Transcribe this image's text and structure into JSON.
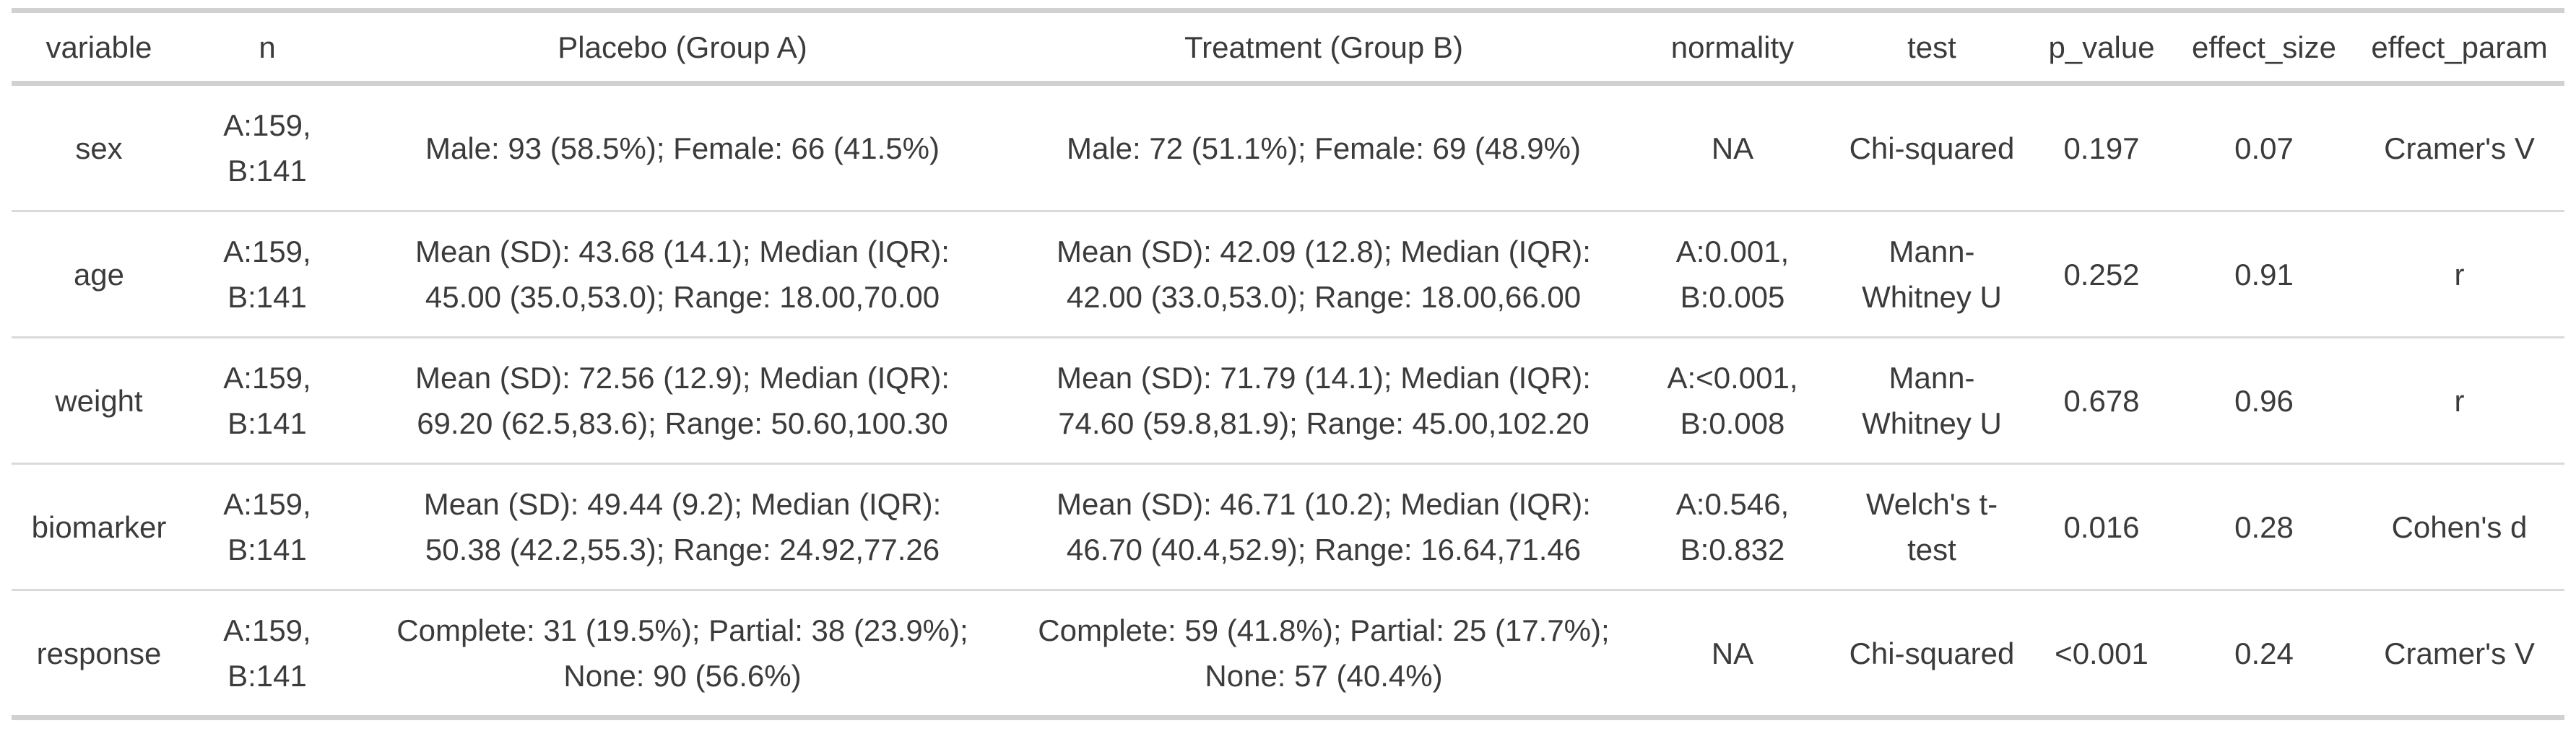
{
  "colors": {
    "text": "#3b3b3b",
    "rule_thick": "#d1d1d1",
    "rule_thin": "#dadada",
    "background": "#ffffff"
  },
  "chart_data": {
    "type": "table",
    "title": "",
    "columns": [
      "variable",
      "n",
      "Placebo (Group A)",
      "Treatment (Group B)",
      "normality",
      "test",
      "p_value",
      "effect_size",
      "effect_param"
    ],
    "rows": [
      [
        "sex",
        "A:159,\nB:141",
        "Male: 93 (58.5%); Female: 66 (41.5%)",
        "Male: 72 (51.1%); Female: 69 (48.9%)",
        "NA",
        "Chi-squared",
        "0.197",
        "0.07",
        "Cramer's V"
      ],
      [
        "age",
        "A:159,\nB:141",
        "Mean (SD): 43.68 (14.1); Median (IQR):\n45.00 (35.0,53.0); Range: 18.00,70.00",
        "Mean (SD): 42.09 (12.8); Median (IQR):\n42.00 (33.0,53.0); Range: 18.00,66.00",
        "A:0.001,\nB:0.005",
        "Mann-\nWhitney U",
        "0.252",
        "0.91",
        "r"
      ],
      [
        "weight",
        "A:159,\nB:141",
        "Mean (SD): 72.56 (12.9); Median (IQR):\n69.20 (62.5,83.6); Range: 50.60,100.30",
        "Mean (SD): 71.79 (14.1); Median (IQR):\n74.60 (59.8,81.9); Range: 45.00,102.20",
        "A:<0.001,\nB:0.008",
        "Mann-\nWhitney U",
        "0.678",
        "0.96",
        "r"
      ],
      [
        "biomarker",
        "A:159,\nB:141",
        "Mean (SD): 49.44 (9.2); Median (IQR):\n50.38 (42.2,55.3); Range: 24.92,77.26",
        "Mean (SD): 46.71 (10.2); Median (IQR):\n46.70 (40.4,52.9); Range: 16.64,71.46",
        "A:0.546,\nB:0.832",
        "Welch's t-\ntest",
        "0.016",
        "0.28",
        "Cohen's d"
      ],
      [
        "response",
        "A:159,\nB:141",
        "Complete: 31 (19.5%); Partial: 38 (23.9%);\nNone: 90 (56.6%)",
        "Complete: 59 (41.8%); Partial: 25 (17.7%);\nNone: 57 (40.4%)",
        "NA",
        "Chi-squared",
        "<0.001",
        "0.24",
        "Cramer's V"
      ]
    ]
  }
}
